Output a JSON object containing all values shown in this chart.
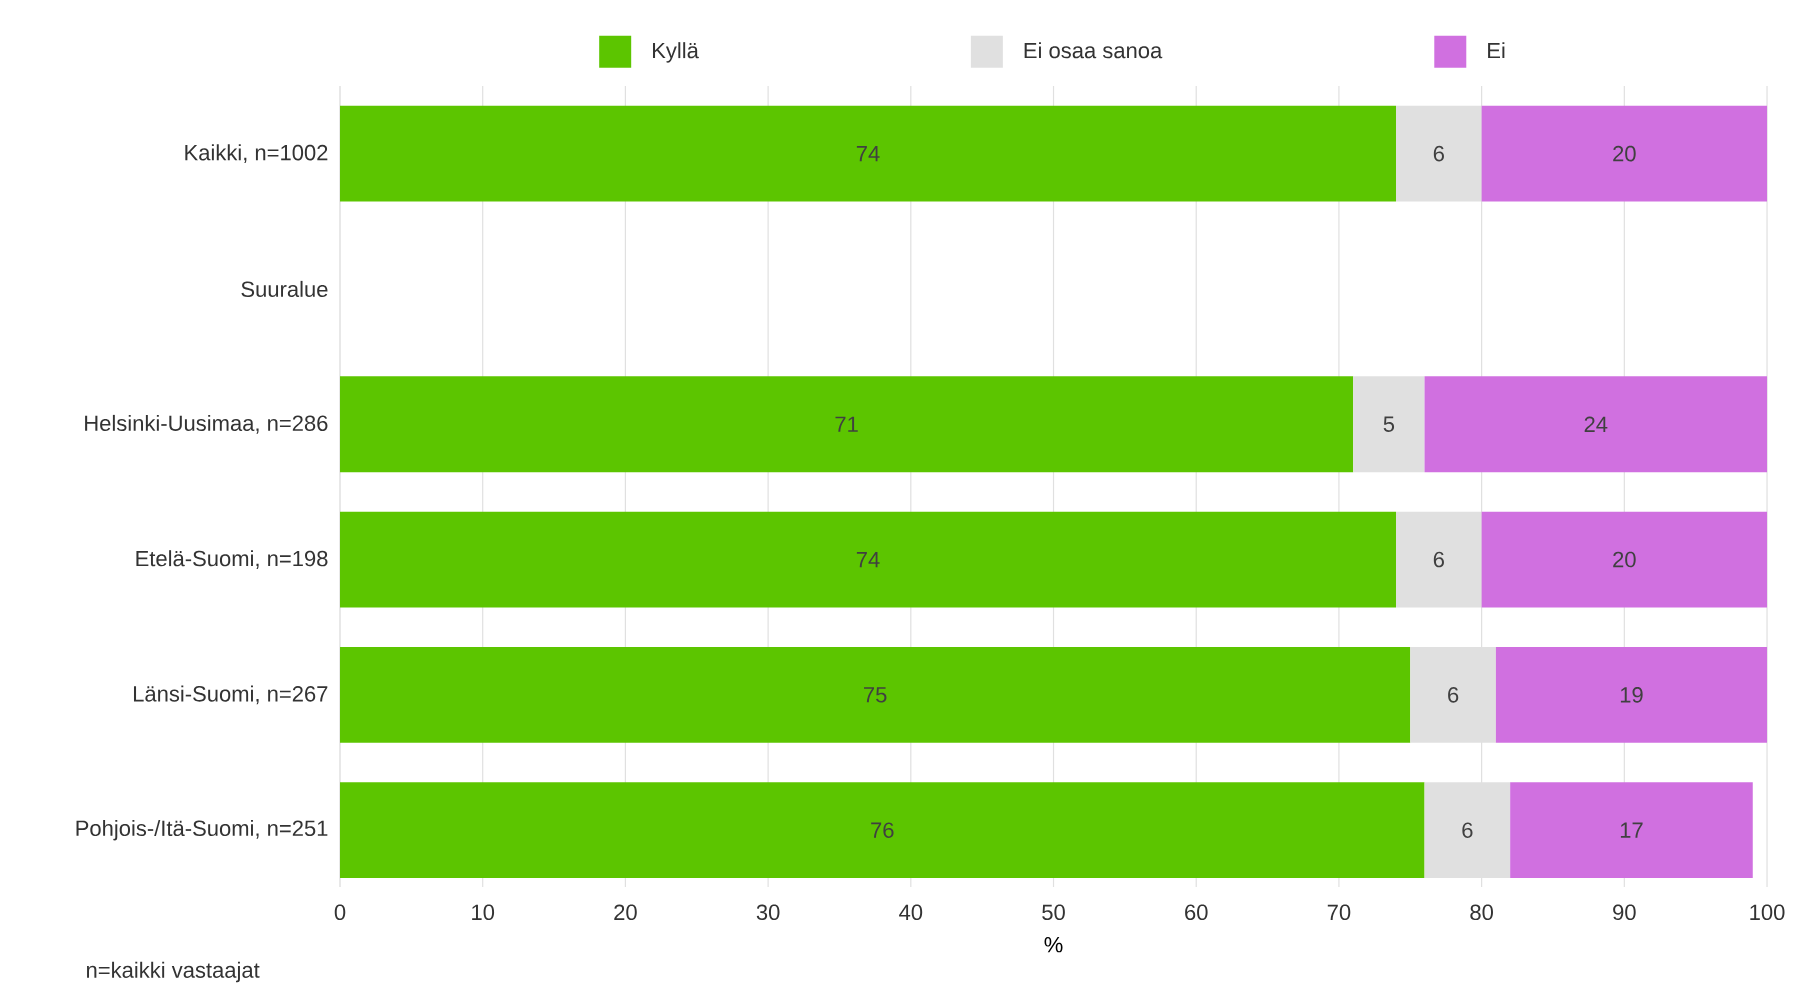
{
  "chart_data": {
    "type": "bar",
    "orientation": "horizontal",
    "stacked": true,
    "data_labels": true,
    "grid": "x",
    "legend": "top",
    "xlabel": "%",
    "categories": [
      "Kaikki, n=1002",
      "Suuralue",
      "Helsinki-Uusimaa, n=286",
      "Etelä-Suomi, n=198",
      "Länsi-Suomi, n=267",
      "Pohjois-/Itä-Suomi, n=251"
    ],
    "series": [
      {
        "name": "Kyllä",
        "color": "#5cc500",
        "values": [
          74,
          null,
          71,
          74,
          75,
          76
        ]
      },
      {
        "name": "Ei osaa sanoa",
        "color": "#e0e0e0",
        "values": [
          6,
          null,
          5,
          6,
          6,
          6
        ]
      },
      {
        "name": "Ei",
        "color": "#d070e0",
        "values": [
          20,
          null,
          24,
          20,
          19,
          17
        ]
      }
    ],
    "xlim": [
      0,
      100
    ],
    "xticks": [
      0,
      10,
      20,
      30,
      40,
      50,
      60,
      70,
      80,
      90,
      100
    ],
    "annotations": [
      "n=kaikki vastaajat"
    ]
  }
}
